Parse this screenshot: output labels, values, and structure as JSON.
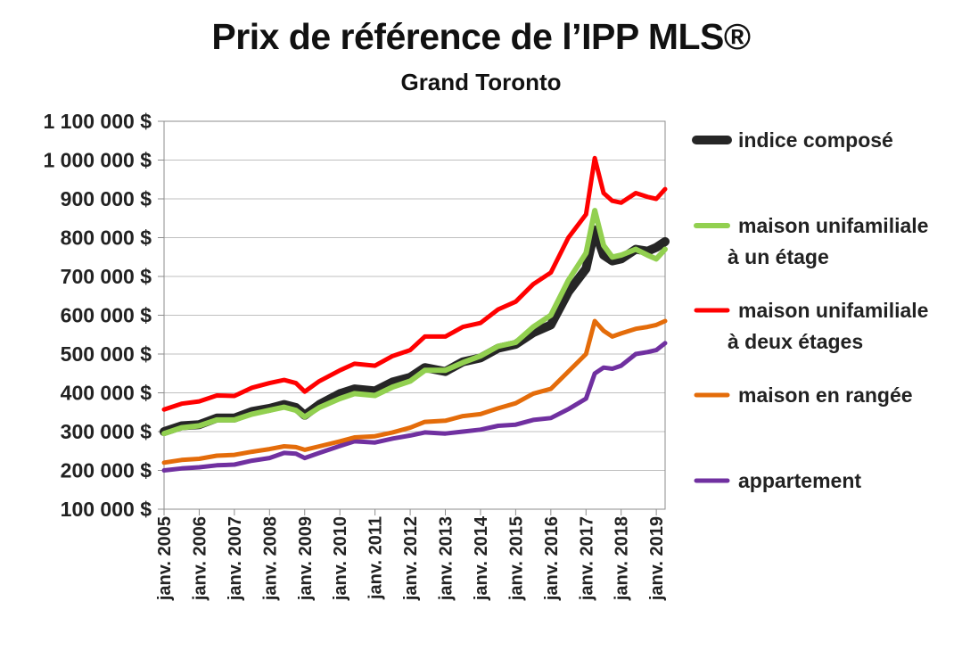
{
  "chart_data": {
    "type": "line",
    "title": "Prix de référence de l’IPP MLS®",
    "subtitle": "Grand Toronto",
    "xlabel": "",
    "ylabel": "",
    "x_start": "2005-01",
    "x_end": "2019-04",
    "ylim": [
      100000,
      1100000
    ],
    "y_ticks": [
      100000,
      200000,
      300000,
      400000,
      500000,
      600000,
      700000,
      800000,
      900000,
      1000000,
      1100000
    ],
    "y_tick_labels": [
      "100 000 $",
      "200 000 $",
      "300 000 $",
      "400 000 $",
      "500 000 $",
      "600 000 $",
      "700 000 $",
      "800 000 $",
      "900 000 $",
      "1 000 000 $",
      "1 100 000 $"
    ],
    "x_ticks": [
      "2005-01",
      "2006-01",
      "2007-01",
      "2008-01",
      "2009-01",
      "2010-01",
      "2011-01",
      "2012-01",
      "2013-01",
      "2014-01",
      "2015-01",
      "2016-01",
      "2017-01",
      "2018-01",
      "2019-01"
    ],
    "x_tick_labels": [
      "janv. 2005",
      "janv. 2006",
      "janv. 2007",
      "janv. 2008",
      "janv. 2009",
      "janv. 2010",
      "janv. 2011",
      "janv. 2012",
      "janv. 2013",
      "janv. 2014",
      "janv. 2015",
      "janv. 2016",
      "janv. 2017",
      "janv. 2018",
      "janv. 2019"
    ],
    "grid": "horizontal",
    "legend_position": "right",
    "series": [
      {
        "name": "indice composé",
        "color": "#262626",
        "points": [
          [
            "2005-01",
            300000
          ],
          [
            "2005-07",
            315000
          ],
          [
            "2006-01",
            318000
          ],
          [
            "2006-07",
            335000
          ],
          [
            "2007-01",
            335000
          ],
          [
            "2007-07",
            352000
          ],
          [
            "2008-01",
            360000
          ],
          [
            "2008-06",
            370000
          ],
          [
            "2008-10",
            362000
          ],
          [
            "2009-01",
            342000
          ],
          [
            "2009-06",
            370000
          ],
          [
            "2010-01",
            398000
          ],
          [
            "2010-06",
            410000
          ],
          [
            "2011-01",
            405000
          ],
          [
            "2011-07",
            428000
          ],
          [
            "2012-01",
            440000
          ],
          [
            "2012-06",
            465000
          ],
          [
            "2013-01",
            455000
          ],
          [
            "2013-07",
            480000
          ],
          [
            "2014-01",
            490000
          ],
          [
            "2014-07",
            515000
          ],
          [
            "2015-01",
            525000
          ],
          [
            "2015-07",
            555000
          ],
          [
            "2016-01",
            575000
          ],
          [
            "2016-07",
            660000
          ],
          [
            "2017-01",
            720000
          ],
          [
            "2017-04",
            820000
          ],
          [
            "2017-07",
            755000
          ],
          [
            "2017-10",
            740000
          ],
          [
            "2018-01",
            745000
          ],
          [
            "2018-06",
            770000
          ],
          [
            "2018-10",
            765000
          ],
          [
            "2019-01",
            775000
          ],
          [
            "2019-04",
            790000
          ]
        ]
      },
      {
        "name": "maison unifamiliale à un étage",
        "name_lines": [
          "maison unifamiliale",
          "à un étage"
        ],
        "color": "#92d050",
        "points": [
          [
            "2005-01",
            295000
          ],
          [
            "2005-07",
            310000
          ],
          [
            "2006-01",
            315000
          ],
          [
            "2006-07",
            330000
          ],
          [
            "2007-01",
            330000
          ],
          [
            "2007-07",
            345000
          ],
          [
            "2008-01",
            355000
          ],
          [
            "2008-06",
            363000
          ],
          [
            "2008-10",
            355000
          ],
          [
            "2009-01",
            338000
          ],
          [
            "2009-06",
            362000
          ],
          [
            "2010-01",
            385000
          ],
          [
            "2010-06",
            398000
          ],
          [
            "2011-01",
            393000
          ],
          [
            "2011-07",
            415000
          ],
          [
            "2012-01",
            430000
          ],
          [
            "2012-06",
            458000
          ],
          [
            "2013-01",
            458000
          ],
          [
            "2013-07",
            478000
          ],
          [
            "2014-01",
            495000
          ],
          [
            "2014-07",
            520000
          ],
          [
            "2015-01",
            530000
          ],
          [
            "2015-07",
            570000
          ],
          [
            "2016-01",
            600000
          ],
          [
            "2016-07",
            690000
          ],
          [
            "2017-01",
            760000
          ],
          [
            "2017-04",
            870000
          ],
          [
            "2017-07",
            780000
          ],
          [
            "2017-10",
            750000
          ],
          [
            "2018-01",
            755000
          ],
          [
            "2018-06",
            770000
          ],
          [
            "2018-10",
            755000
          ],
          [
            "2019-01",
            745000
          ],
          [
            "2019-04",
            770000
          ]
        ]
      },
      {
        "name": "maison unifamiliale à deux étages",
        "name_lines": [
          "maison unifamiliale",
          "à deux étages"
        ],
        "color": "#ff0000",
        "points": [
          [
            "2005-01",
            357000
          ],
          [
            "2005-07",
            372000
          ],
          [
            "2006-01",
            378000
          ],
          [
            "2006-07",
            393000
          ],
          [
            "2007-01",
            392000
          ],
          [
            "2007-07",
            413000
          ],
          [
            "2008-01",
            425000
          ],
          [
            "2008-06",
            433000
          ],
          [
            "2008-10",
            425000
          ],
          [
            "2009-01",
            403000
          ],
          [
            "2009-06",
            430000
          ],
          [
            "2010-01",
            458000
          ],
          [
            "2010-06",
            475000
          ],
          [
            "2011-01",
            470000
          ],
          [
            "2011-07",
            495000
          ],
          [
            "2012-01",
            510000
          ],
          [
            "2012-06",
            545000
          ],
          [
            "2013-01",
            545000
          ],
          [
            "2013-07",
            570000
          ],
          [
            "2014-01",
            580000
          ],
          [
            "2014-07",
            615000
          ],
          [
            "2015-01",
            635000
          ],
          [
            "2015-07",
            680000
          ],
          [
            "2016-01",
            710000
          ],
          [
            "2016-07",
            800000
          ],
          [
            "2017-01",
            860000
          ],
          [
            "2017-04",
            1005000
          ],
          [
            "2017-07",
            915000
          ],
          [
            "2017-10",
            895000
          ],
          [
            "2018-01",
            890000
          ],
          [
            "2018-06",
            915000
          ],
          [
            "2018-10",
            905000
          ],
          [
            "2019-01",
            900000
          ],
          [
            "2019-04",
            925000
          ]
        ]
      },
      {
        "name": "maison en rangée",
        "color": "#e46c0a",
        "points": [
          [
            "2005-01",
            220000
          ],
          [
            "2005-07",
            227000
          ],
          [
            "2006-01",
            230000
          ],
          [
            "2006-07",
            238000
          ],
          [
            "2007-01",
            240000
          ],
          [
            "2007-07",
            248000
          ],
          [
            "2008-01",
            255000
          ],
          [
            "2008-06",
            262000
          ],
          [
            "2008-10",
            260000
          ],
          [
            "2009-01",
            253000
          ],
          [
            "2009-06",
            262000
          ],
          [
            "2010-01",
            275000
          ],
          [
            "2010-06",
            285000
          ],
          [
            "2011-01",
            288000
          ],
          [
            "2011-07",
            298000
          ],
          [
            "2012-01",
            310000
          ],
          [
            "2012-06",
            325000
          ],
          [
            "2013-01",
            328000
          ],
          [
            "2013-07",
            340000
          ],
          [
            "2014-01",
            345000
          ],
          [
            "2014-07",
            360000
          ],
          [
            "2015-01",
            373000
          ],
          [
            "2015-07",
            398000
          ],
          [
            "2016-01",
            410000
          ],
          [
            "2016-07",
            455000
          ],
          [
            "2017-01",
            500000
          ],
          [
            "2017-04",
            585000
          ],
          [
            "2017-07",
            560000
          ],
          [
            "2017-10",
            545000
          ],
          [
            "2018-01",
            553000
          ],
          [
            "2018-06",
            565000
          ],
          [
            "2018-10",
            570000
          ],
          [
            "2019-01",
            575000
          ],
          [
            "2019-04",
            585000
          ]
        ]
      },
      {
        "name": "appartement",
        "color": "#7030a0",
        "points": [
          [
            "2005-01",
            200000
          ],
          [
            "2005-07",
            205000
          ],
          [
            "2006-01",
            208000
          ],
          [
            "2006-07",
            213000
          ],
          [
            "2007-01",
            215000
          ],
          [
            "2007-07",
            225000
          ],
          [
            "2008-01",
            232000
          ],
          [
            "2008-06",
            245000
          ],
          [
            "2008-10",
            243000
          ],
          [
            "2009-01",
            232000
          ],
          [
            "2009-06",
            245000
          ],
          [
            "2010-01",
            263000
          ],
          [
            "2010-06",
            275000
          ],
          [
            "2011-01",
            272000
          ],
          [
            "2011-07",
            282000
          ],
          [
            "2012-01",
            290000
          ],
          [
            "2012-06",
            298000
          ],
          [
            "2013-01",
            295000
          ],
          [
            "2013-07",
            300000
          ],
          [
            "2014-01",
            305000
          ],
          [
            "2014-07",
            315000
          ],
          [
            "2015-01",
            318000
          ],
          [
            "2015-07",
            330000
          ],
          [
            "2016-01",
            335000
          ],
          [
            "2016-07",
            358000
          ],
          [
            "2017-01",
            385000
          ],
          [
            "2017-04",
            450000
          ],
          [
            "2017-07",
            465000
          ],
          [
            "2017-10",
            462000
          ],
          [
            "2018-01",
            470000
          ],
          [
            "2018-06",
            500000
          ],
          [
            "2018-10",
            505000
          ],
          [
            "2019-01",
            510000
          ],
          [
            "2019-04",
            528000
          ]
        ]
      }
    ]
  }
}
